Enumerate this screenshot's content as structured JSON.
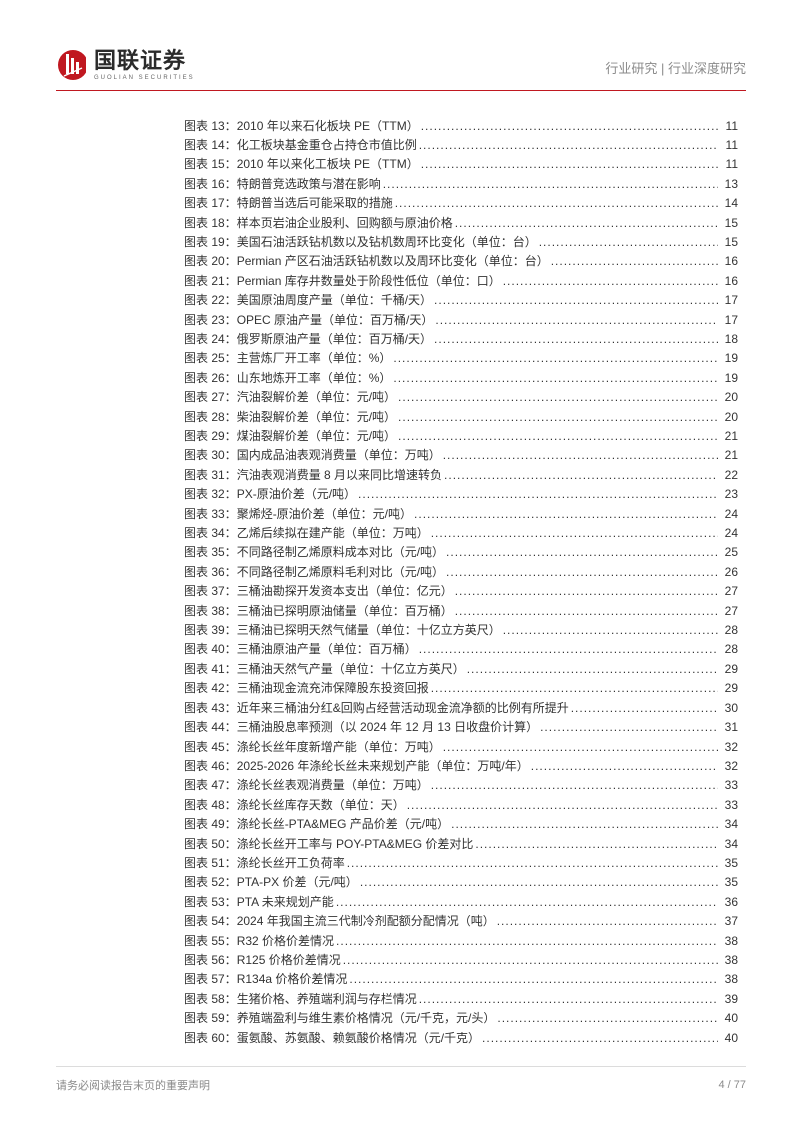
{
  "header": {
    "company_cn": "国联证券",
    "company_en": "GUOLIAN SECURITIES",
    "breadcrumb": "行业研究 | 行业深度研究"
  },
  "colors": {
    "brand_red": "#c01820",
    "text_gray": "#8a8a8a",
    "text_main": "#333333",
    "divider_gray": "#dcdcdc",
    "background": "#ffffff"
  },
  "typography": {
    "toc_fontsize": 12,
    "toc_lineheight": 19.4,
    "header_right_fontsize": 13,
    "logo_cn_fontsize": 22,
    "footer_fontsize": 11
  },
  "toc_prefix": "图表",
  "toc_separator": "：",
  "toc": [
    {
      "num": "13",
      "title": "2010 年以来石化板块 PE（TTM）",
      "page": "11"
    },
    {
      "num": "14",
      "title": "化工板块基金重仓占持仓市值比例",
      "page": "11"
    },
    {
      "num": "15",
      "title": "2010 年以来化工板块 PE（TTM）",
      "page": "11"
    },
    {
      "num": "16",
      "title": "特朗普竞选政策与潜在影响",
      "page": "13"
    },
    {
      "num": "17",
      "title": "特朗普当选后可能采取的措施",
      "page": "14"
    },
    {
      "num": "18",
      "title": "样本页岩油企业股利、回购额与原油价格",
      "page": "15"
    },
    {
      "num": "19",
      "title": "美国石油活跃钻机数以及钻机数周环比变化（单位：台）",
      "page": "15"
    },
    {
      "num": "20",
      "title": "Permian 产区石油活跃钻机数以及周环比变化（单位：台）",
      "page": "16"
    },
    {
      "num": "21",
      "title": "Permian 库存井数量处于阶段性低位（单位：口）",
      "page": "16"
    },
    {
      "num": "22",
      "title": "美国原油周度产量（单位：千桶/天）",
      "page": "17"
    },
    {
      "num": "23",
      "title": "OPEC 原油产量（单位：百万桶/天）",
      "page": "17"
    },
    {
      "num": "24",
      "title": "俄罗斯原油产量（单位：百万桶/天）",
      "page": "18"
    },
    {
      "num": "25",
      "title": "主营炼厂开工率（单位：%）",
      "page": "19"
    },
    {
      "num": "26",
      "title": "山东地炼开工率（单位：%）",
      "page": "19"
    },
    {
      "num": "27",
      "title": "汽油裂解价差（单位：元/吨）",
      "page": "20"
    },
    {
      "num": "28",
      "title": "柴油裂解价差（单位：元/吨）",
      "page": "20"
    },
    {
      "num": "29",
      "title": "煤油裂解价差（单位：元/吨）",
      "page": "21"
    },
    {
      "num": "30",
      "title": "国内成品油表观消费量（单位：万吨）",
      "page": "21"
    },
    {
      "num": "31",
      "title": "汽油表观消费量 8 月以来同比增速转负",
      "page": "22"
    },
    {
      "num": "32",
      "title": "PX-原油价差（元/吨）",
      "page": "23"
    },
    {
      "num": "33",
      "title": "聚烯烃-原油价差（单位：元/吨）",
      "page": "24"
    },
    {
      "num": "34",
      "title": "乙烯后续拟在建产能（单位：万吨）",
      "page": "24"
    },
    {
      "num": "35",
      "title": "不同路径制乙烯原料成本对比（元/吨）",
      "page": "25"
    },
    {
      "num": "36",
      "title": "不同路径制乙烯原料毛利对比（元/吨）",
      "page": "26"
    },
    {
      "num": "37",
      "title": "三桶油勘探开发资本支出（单位：亿元）",
      "page": "27"
    },
    {
      "num": "38",
      "title": "三桶油已探明原油储量（单位：百万桶）",
      "page": "27"
    },
    {
      "num": "39",
      "title": "三桶油已探明天然气储量（单位：十亿立方英尺）",
      "page": "28"
    },
    {
      "num": "40",
      "title": "三桶油原油产量（单位：百万桶）",
      "page": "28"
    },
    {
      "num": "41",
      "title": "三桶油天然气产量（单位：十亿立方英尺）",
      "page": "29"
    },
    {
      "num": "42",
      "title": "三桶油现金流充沛保障股东投资回报",
      "page": "29"
    },
    {
      "num": "43",
      "title": "近年来三桶油分红&回购占经营活动现金流净额的比例有所提升",
      "page": "30"
    },
    {
      "num": "44",
      "title": "三桶油股息率预测（以 2024 年 12 月 13 日收盘价计算）",
      "page": "31"
    },
    {
      "num": "45",
      "title": "涤纶长丝年度新增产能（单位：万吨）",
      "page": "32"
    },
    {
      "num": "46",
      "title": "2025-2026 年涤纶长丝未来规划产能（单位：万吨/年）",
      "page": "32"
    },
    {
      "num": "47",
      "title": "涤纶长丝表观消费量（单位：万吨）",
      "page": "33"
    },
    {
      "num": "48",
      "title": "涤纶长丝库存天数（单位：天）",
      "page": "33"
    },
    {
      "num": "49",
      "title": "涤纶长丝-PTA&MEG 产品价差（元/吨）",
      "page": "34"
    },
    {
      "num": "50",
      "title": "涤纶长丝开工率与 POY-PTA&MEG 价差对比",
      "page": "34"
    },
    {
      "num": "51",
      "title": "涤纶长丝开工负荷率",
      "page": "35"
    },
    {
      "num": "52",
      "title": "PTA-PX 价差（元/吨）",
      "page": "35"
    },
    {
      "num": "53",
      "title": "PTA 未来规划产能",
      "page": "36"
    },
    {
      "num": "54",
      "title": "2024 年我国主流三代制冷剂配额分配情况（吨）",
      "page": "37"
    },
    {
      "num": "55",
      "title": "R32 价格价差情况",
      "page": "38"
    },
    {
      "num": "56",
      "title": "R125 价格价差情况",
      "page": "38"
    },
    {
      "num": "57",
      "title": "R134a 价格价差情况",
      "page": "38"
    },
    {
      "num": "58",
      "title": "生猪价格、养殖端利润与存栏情况",
      "page": "39"
    },
    {
      "num": "59",
      "title": "养殖端盈利与维生素价格情况（元/千克，元/头）",
      "page": "40"
    },
    {
      "num": "60",
      "title": "蛋氨酸、苏氨酸、赖氨酸价格情况（元/千克）",
      "page": "40"
    }
  ],
  "footer": {
    "disclaimer": "请务必阅读报告末页的重要声明",
    "page_indicator": "4 / 77"
  }
}
